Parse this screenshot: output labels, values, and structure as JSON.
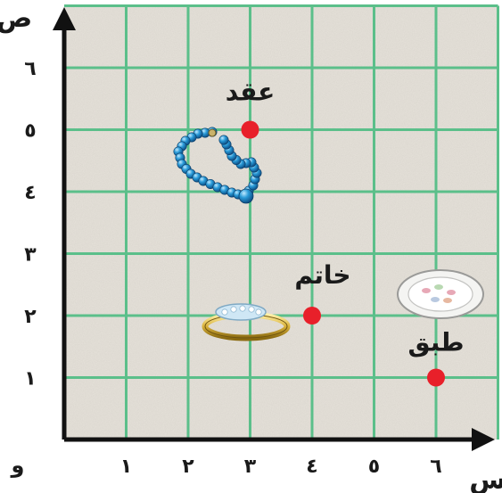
{
  "chart_data": {
    "type": "scatter",
    "title": "",
    "xlabel": "س",
    "ylabel": "ص",
    "origin_label": "و",
    "xlim": [
      0,
      7
    ],
    "ylim": [
      0,
      7
    ],
    "grid": true,
    "x_ticks": [
      {
        "value": 1,
        "label": "١"
      },
      {
        "value": 2,
        "label": "٢"
      },
      {
        "value": 3,
        "label": "٣"
      },
      {
        "value": 4,
        "label": "٤"
      },
      {
        "value": 5,
        "label": "٥"
      },
      {
        "value": 6,
        "label": "٦"
      }
    ],
    "y_ticks": [
      {
        "value": 1,
        "label": "١"
      },
      {
        "value": 2,
        "label": "٢"
      },
      {
        "value": 3,
        "label": "٣"
      },
      {
        "value": 4,
        "label": "٤"
      },
      {
        "value": 5,
        "label": "٥"
      },
      {
        "value": 6,
        "label": "٦"
      }
    ],
    "points": [
      {
        "label": "عقد",
        "x": 3,
        "y": 5,
        "icon": "necklace-icon"
      },
      {
        "label": "خاتم",
        "x": 4,
        "y": 2,
        "icon": "ring-icon"
      },
      {
        "label": "طبق",
        "x": 6,
        "y": 1,
        "icon": "plate-icon"
      }
    ],
    "colors": {
      "grid": "#5bbf8a",
      "point": "#e8202a",
      "axis": "#111111",
      "background": "#e6e2da"
    }
  }
}
